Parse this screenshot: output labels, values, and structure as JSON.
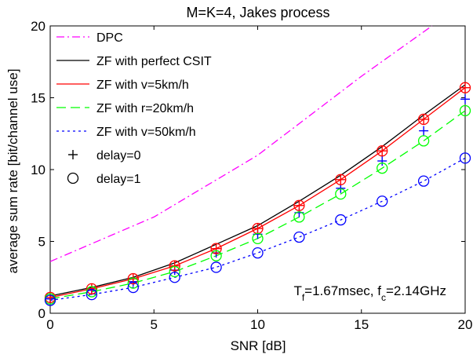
{
  "chart_data": {
    "type": "line",
    "title": "M=K=4, Jakes process",
    "xlabel": "SNR [dB]",
    "ylabel": "average sum rate [bit/channel use]",
    "xlim": [
      0,
      20
    ],
    "ylim": [
      0,
      20
    ],
    "xticks": [
      0,
      5,
      10,
      15,
      20
    ],
    "yticks": [
      0,
      5,
      10,
      15,
      20
    ],
    "grid": false,
    "legend_position": "top-left",
    "annotation": {
      "parts": [
        {
          "text": "T",
          "sub": false
        },
        {
          "text": "f",
          "sub": true
        },
        {
          "text": "=1.67msec, f",
          "sub": false
        },
        {
          "text": "c",
          "sub": true
        },
        {
          "text": "=2.14GHz",
          "sub": false
        }
      ]
    },
    "series": [
      {
        "name": "DPC",
        "color": "#ff00ff",
        "dash": "dashdot",
        "x": [
          0,
          5,
          10,
          15,
          18.4
        ],
        "y": [
          3.6,
          6.7,
          11.0,
          16.5,
          20.0
        ]
      },
      {
        "name": "ZF with perfect CSIT",
        "color": "#000000",
        "dash": "solid",
        "x": [
          0,
          2,
          4,
          6,
          8,
          10,
          12,
          14,
          16,
          18,
          20
        ],
        "y": [
          1.2,
          1.8,
          2.5,
          3.5,
          4.8,
          6.1,
          7.8,
          9.6,
          11.6,
          13.8,
          15.9
        ]
      },
      {
        "name": "ZF with v=5km/h",
        "color": "#ff0000",
        "dash": "solid",
        "x": [
          0,
          2,
          4,
          6,
          8,
          10,
          12,
          14,
          16,
          18,
          20
        ],
        "y": [
          1.1,
          1.7,
          2.4,
          3.3,
          4.5,
          5.9,
          7.5,
          9.3,
          11.3,
          13.5,
          15.7
        ]
      },
      {
        "name": "ZF with r=20km/h",
        "color": "#00ff00",
        "dash": "dashed",
        "x": [
          0,
          2,
          4,
          6,
          8,
          10,
          12,
          14,
          16,
          18,
          20
        ],
        "y": [
          1.0,
          1.5,
          2.1,
          2.9,
          4.0,
          5.2,
          6.7,
          8.3,
          10.1,
          12.0,
          14.1
        ]
      },
      {
        "name": "ZF with v=50km/h",
        "color": "#0000ff",
        "dash": "dotted",
        "x": [
          0,
          2,
          4,
          6,
          8,
          10,
          12,
          14,
          16,
          18,
          20
        ],
        "y": [
          0.9,
          1.3,
          1.8,
          2.5,
          3.2,
          4.2,
          5.3,
          6.5,
          7.8,
          9.2,
          10.8
        ]
      }
    ],
    "marker_series": [
      {
        "name": "delay=0",
        "marker": "plus",
        "points": [
          {
            "color": "#0000ff",
            "x": [
              0,
              2,
              4,
              6,
              8,
              10,
              12,
              14,
              16,
              18,
              20
            ],
            "y": [
              1.0,
              1.6,
              2.2,
              3.0,
              4.2,
              5.5,
              7.0,
              8.7,
              10.6,
              12.7,
              14.9
            ]
          },
          {
            "color": "#ff0000",
            "x": [
              0,
              2,
              4,
              6,
              8,
              10,
              12,
              14,
              16,
              18,
              20
            ],
            "y": [
              1.1,
              1.7,
              2.4,
              3.3,
              4.5,
              5.9,
              7.5,
              9.3,
              11.3,
              13.5,
              15.7
            ]
          }
        ]
      },
      {
        "name": "delay=1",
        "marker": "circle",
        "points": [
          {
            "color": "#ff0000",
            "x": [
              0,
              2,
              4,
              6,
              8,
              10,
              12,
              14,
              16,
              18,
              20
            ],
            "y": [
              1.1,
              1.7,
              2.4,
              3.3,
              4.5,
              5.9,
              7.5,
              9.3,
              11.3,
              13.5,
              15.7
            ]
          },
          {
            "color": "#00ff00",
            "x": [
              0,
              2,
              4,
              6,
              8,
              10,
              12,
              14,
              16,
              18,
              20
            ],
            "y": [
              1.0,
              1.5,
              2.1,
              2.9,
              4.0,
              5.2,
              6.7,
              8.3,
              10.1,
              12.0,
              14.1
            ]
          },
          {
            "color": "#0000ff",
            "x": [
              0,
              2,
              4,
              6,
              8,
              10,
              12,
              14,
              16,
              18,
              20
            ],
            "y": [
              0.9,
              1.3,
              1.8,
              2.5,
              3.2,
              4.2,
              5.3,
              6.5,
              7.8,
              9.2,
              10.8
            ]
          }
        ]
      }
    ]
  }
}
